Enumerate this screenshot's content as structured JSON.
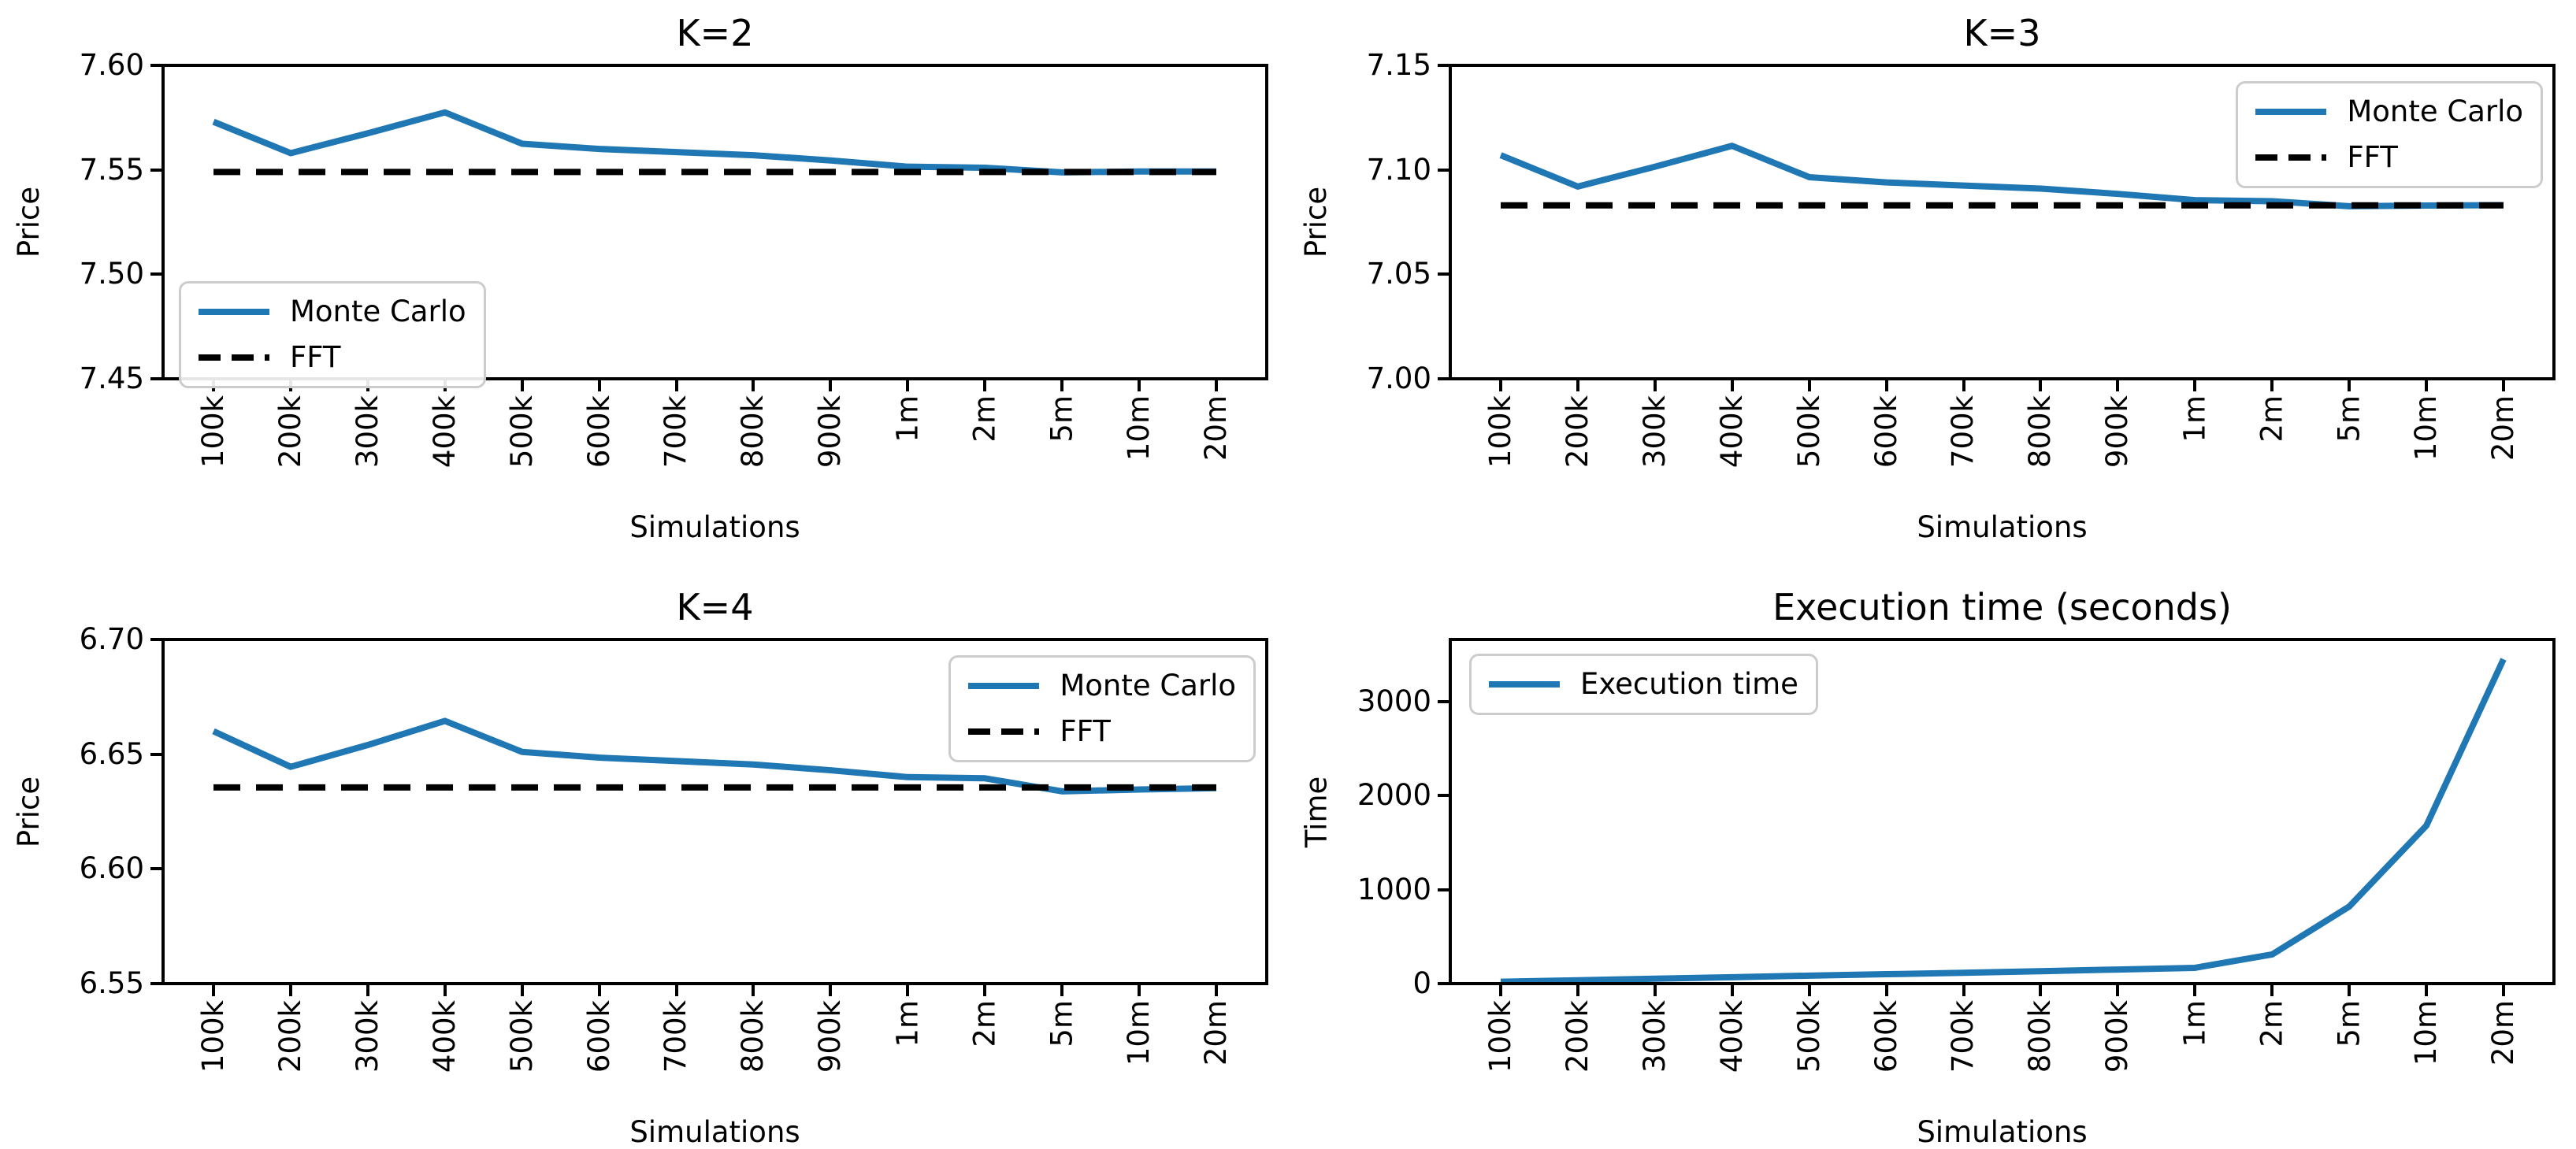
{
  "figure": {
    "background": "#ffffff",
    "accent_blue": "#1f77b4",
    "line_black": "#000000",
    "legend_border": "#cccccc"
  },
  "chart_data": [
    {
      "type": "line",
      "title": "K=2",
      "xlabel": "Simulations",
      "ylabel": "Price",
      "categories": [
        "100k",
        "200k",
        "300k",
        "400k",
        "500k",
        "600k",
        "700k",
        "800k",
        "900k",
        "1m",
        "2m",
        "5m",
        "10m",
        "20m"
      ],
      "ylim": [
        7.45,
        7.6
      ],
      "yticks": [
        {
          "value": 7.6,
          "label": "7.60"
        },
        {
          "value": 7.55,
          "label": "7.55"
        },
        {
          "value": 7.5,
          "label": "7.50"
        },
        {
          "value": 7.45,
          "label": "7.45"
        }
      ],
      "grid": false,
      "legend_loc": "lower left",
      "series": [
        {
          "name": "Monte Carlo",
          "color": "#1f77b4",
          "dashed": false,
          "values": [
            7.573,
            7.558,
            7.5675,
            7.5775,
            7.5625,
            7.56,
            7.5585,
            7.557,
            7.5545,
            7.5515,
            7.551,
            7.5488,
            7.5492,
            7.5492
          ]
        },
        {
          "name": "FFT",
          "color": "#000000",
          "dashed": true,
          "constant": 7.549
        }
      ]
    },
    {
      "type": "line",
      "title": "K=3",
      "xlabel": "Simulations",
      "ylabel": "Price",
      "categories": [
        "100k",
        "200k",
        "300k",
        "400k",
        "500k",
        "600k",
        "700k",
        "800k",
        "900k",
        "1m",
        "2m",
        "5m",
        "10m",
        "20m"
      ],
      "ylim": [
        7.0,
        7.15
      ],
      "yticks": [
        {
          "value": 7.15,
          "label": "7.15"
        },
        {
          "value": 7.1,
          "label": "7.10"
        },
        {
          "value": 7.05,
          "label": "7.05"
        },
        {
          "value": 7.0,
          "label": "7.00"
        }
      ],
      "grid": false,
      "legend_loc": "upper right",
      "series": [
        {
          "name": "Monte Carlo",
          "color": "#1f77b4",
          "dashed": false,
          "values": [
            7.107,
            7.092,
            7.1015,
            7.1115,
            7.0965,
            7.094,
            7.0925,
            7.091,
            7.0885,
            7.0855,
            7.085,
            7.0826,
            7.0829,
            7.0831
          ]
        },
        {
          "name": "FFT",
          "color": "#000000",
          "dashed": true,
          "constant": 7.083
        }
      ]
    },
    {
      "type": "line",
      "title": "K=4",
      "xlabel": "Simulations",
      "ylabel": "Price",
      "categories": [
        "100k",
        "200k",
        "300k",
        "400k",
        "500k",
        "600k",
        "700k",
        "800k",
        "900k",
        "1m",
        "2m",
        "5m",
        "10m",
        "20m"
      ],
      "ylim": [
        6.55,
        6.7
      ],
      "yticks": [
        {
          "value": 6.7,
          "label": "6.70"
        },
        {
          "value": 6.65,
          "label": "6.65"
        },
        {
          "value": 6.6,
          "label": "6.60"
        },
        {
          "value": 6.55,
          "label": "6.55"
        }
      ],
      "grid": false,
      "legend_loc": "upper right",
      "series": [
        {
          "name": "Monte Carlo",
          "color": "#1f77b4",
          "dashed": false,
          "values": [
            6.66,
            6.6445,
            6.654,
            6.6645,
            6.651,
            6.6485,
            6.647,
            6.6455,
            6.643,
            6.64,
            6.6395,
            6.6338,
            6.6346,
            6.6352
          ]
        },
        {
          "name": "FFT",
          "color": "#000000",
          "dashed": true,
          "constant": 6.6355
        }
      ]
    },
    {
      "type": "line",
      "title": "Execution time (seconds)",
      "xlabel": "Simulations",
      "ylabel": "Time",
      "categories": [
        "100k",
        "200k",
        "300k",
        "400k",
        "500k",
        "600k",
        "700k",
        "800k",
        "900k",
        "1m",
        "2m",
        "5m",
        "10m",
        "20m"
      ],
      "ylim": [
        0,
        3660
      ],
      "yticks": [
        {
          "value": 3000,
          "label": "3000"
        },
        {
          "value": 2000,
          "label": "2000"
        },
        {
          "value": 1000,
          "label": "1000"
        },
        {
          "value": 0,
          "label": "0"
        }
      ],
      "grid": false,
      "legend_loc": "upper left",
      "series": [
        {
          "name": "Execution time",
          "color": "#1f77b4",
          "dashed": false,
          "values": [
            20,
            36,
            52,
            68,
            85,
            100,
            115,
            132,
            150,
            168,
            310,
            820,
            1680,
            3450
          ]
        }
      ]
    }
  ]
}
